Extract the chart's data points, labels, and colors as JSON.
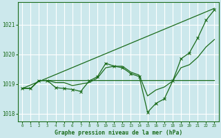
{
  "xlabel": "Graphe pression niveau de la mer (hPa)",
  "bg_color": "#cce8ec",
  "line_color": "#1a6b1a",
  "grid_color": "#ffffff",
  "ylim": [
    1017.75,
    1021.75
  ],
  "yticks": [
    1018,
    1019,
    1020,
    1021
  ],
  "xticks": [
    0,
    1,
    2,
    3,
    4,
    5,
    6,
    7,
    8,
    9,
    10,
    11,
    12,
    13,
    14,
    15,
    16,
    17,
    18,
    19,
    20,
    21,
    22,
    23
  ],
  "trend_x": [
    0,
    23
  ],
  "trend_y": [
    1018.85,
    1021.55
  ],
  "flat_y": [
    1018.85,
    1018.85,
    1019.12,
    1019.12,
    1019.12,
    1019.12,
    1019.12,
    1019.12,
    1019.12,
    1019.12,
    1019.12,
    1019.12,
    1019.12,
    1019.12,
    1019.12,
    1019.12,
    1019.12,
    1019.12,
    1019.12,
    1019.12,
    1019.12,
    1019.12,
    1019.12,
    1019.12
  ],
  "smooth_x": [
    0,
    1,
    2,
    3,
    4,
    5,
    6,
    7,
    8,
    9,
    10,
    11,
    12,
    13,
    14,
    15,
    16,
    17,
    18,
    19,
    20,
    21,
    22,
    23
  ],
  "smooth_y": [
    1018.85,
    1018.85,
    1019.12,
    1019.12,
    1019.05,
    1019.05,
    1018.95,
    1019.0,
    1019.05,
    1019.2,
    1019.55,
    1019.6,
    1019.6,
    1019.4,
    1019.3,
    1018.6,
    1018.8,
    1018.9,
    1019.1,
    1019.55,
    1019.65,
    1019.9,
    1020.25,
    1020.5
  ],
  "wavy_x": [
    0,
    1,
    2,
    3,
    4,
    5,
    6,
    7,
    8,
    9,
    10,
    11,
    12,
    13,
    14,
    15,
    16,
    17,
    18,
    19,
    20,
    21,
    22,
    23
  ],
  "wavy_y": [
    1018.85,
    1018.85,
    1019.12,
    1019.12,
    1018.88,
    1018.85,
    1018.82,
    1018.75,
    1019.1,
    1019.25,
    1019.7,
    1019.6,
    1019.55,
    1019.35,
    1019.25,
    1018.05,
    1018.35,
    1018.5,
    1019.1,
    1019.85,
    1020.05,
    1020.55,
    1021.15,
    1021.5
  ]
}
